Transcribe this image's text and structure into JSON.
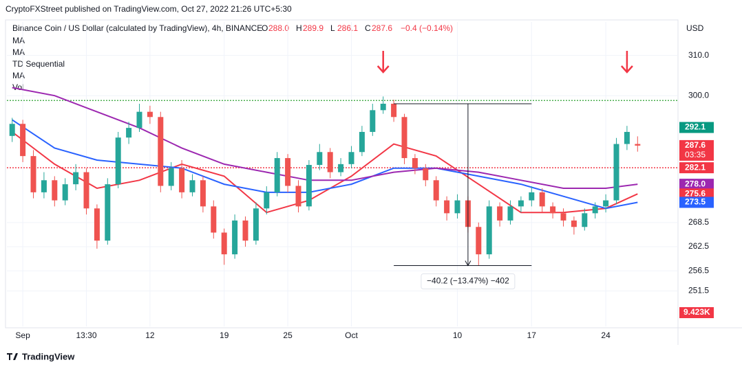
{
  "published": "CryptoFXStreet published on TradingView.com, Oct 27, 2022 21:26 UTC+5:30",
  "symbol": "Binance Coin / US Dollar (calculated by TradingView), 4h, BINANCE",
  "ohlc": [
    {
      "label": "O",
      "value": "288.0"
    },
    {
      "label": "H",
      "value": "289.9"
    },
    {
      "label": "L",
      "value": "286.1"
    },
    {
      "label": "C",
      "value": "287.6"
    }
  ],
  "change": "−0.4 (−0.14%)",
  "indicators": [
    "MA",
    "MA",
    "TD Sequential",
    "MA",
    "Vol"
  ],
  "currency": "USD",
  "footer": "TradingView",
  "chart_data": {
    "type": "candlestick",
    "categories": [
      null,
      "Sep",
      null,
      null,
      null,
      null,
      null,
      "13:30",
      null,
      null,
      null,
      null,
      null,
      "12",
      null,
      null,
      null,
      null,
      null,
      null,
      "19",
      null,
      null,
      null,
      null,
      null,
      "25",
      null,
      null,
      null,
      null,
      null,
      "Oct",
      null,
      null,
      null,
      null,
      null,
      null,
      null,
      null,
      null,
      "10",
      null,
      null,
      null,
      null,
      null,
      null,
      "17",
      null,
      null,
      null,
      null,
      null,
      null,
      "24",
      null,
      null,
      null
    ],
    "open": [
      290,
      293,
      285,
      276,
      279,
      274,
      278,
      281,
      272,
      264,
      278,
      289.6,
      292,
      296,
      294.7,
      277.6,
      282,
      276,
      279,
      272.5,
      266,
      260.6,
      269,
      264,
      272,
      276,
      284.5,
      277.6,
      272.5,
      282.8,
      286,
      281,
      283,
      286,
      291,
      296.4,
      298,
      294.7,
      284.5,
      282,
      279,
      274,
      270.8,
      274,
      267.4,
      260.6,
      272.5,
      269,
      272.5,
      274,
      276,
      272.5,
      270.8,
      269,
      267.4,
      270.8,
      272.5,
      274,
      288,
      288.0
    ],
    "high": [
      294.5,
      294,
      286.5,
      281,
      280,
      279.5,
      283,
      282,
      273,
      279.5,
      291,
      293.5,
      298,
      297.5,
      296,
      283.5,
      284,
      280.5,
      280,
      274,
      267,
      270.5,
      270,
      273.5,
      277.5,
      286,
      285.5,
      279,
      284,
      288,
      287,
      284.5,
      287.5,
      292.5,
      298,
      299.8,
      299,
      295.5,
      285.5,
      283,
      280,
      275,
      275.5,
      275,
      268.5,
      274,
      273.5,
      274,
      275,
      277.5,
      277,
      273.5,
      272,
      270,
      272,
      273.5,
      275.5,
      289.5,
      292.5,
      289.9
    ],
    "low": [
      288.5,
      283.5,
      274.5,
      274.5,
      272.5,
      272.8,
      276.5,
      270.5,
      262,
      263,
      277,
      288,
      291,
      293,
      276,
      276.5,
      274.5,
      275,
      271,
      264.5,
      258,
      259.5,
      262.5,
      263,
      270.5,
      275,
      276,
      271,
      271.5,
      281.5,
      279.5,
      280,
      282,
      285,
      290,
      295.5,
      293.5,
      283,
      280.5,
      277.5,
      272.5,
      269,
      269.5,
      266,
      257.8,
      259.5,
      267.5,
      268,
      271,
      272.5,
      271,
      269.5,
      267.5,
      265.5,
      266.5,
      269.5,
      271,
      273,
      286.5,
      286.1
    ],
    "close": [
      293,
      285,
      276,
      279,
      274,
      278,
      281,
      272,
      264,
      278,
      289.6,
      292,
      296,
      294.7,
      277.6,
      282,
      276,
      279,
      272.5,
      266,
      260.6,
      269,
      264,
      272,
      276,
      284.5,
      277.6,
      272.5,
      282.8,
      286,
      281,
      283,
      286,
      291,
      296.4,
      298,
      294.7,
      284.5,
      282,
      279,
      274,
      270.8,
      274,
      267.4,
      260.6,
      272.5,
      269,
      272.5,
      274,
      276,
      272.5,
      270.8,
      269,
      267.4,
      270.8,
      272.5,
      274,
      288,
      291,
      287.6
    ],
    "up_color": "#26a69a",
    "down_color": "#ef5350",
    "ma_lines": [
      {
        "color": "#f23645",
        "x": [
          0,
          4,
          8,
          12,
          16,
          20,
          24,
          28,
          32,
          36,
          40,
          44,
          48,
          52,
          56,
          59
        ],
        "values": [
          291,
          283,
          277,
          279,
          283,
          280,
          271,
          274,
          280,
          288,
          285,
          278,
          271,
          271,
          272,
          275.6
        ]
      },
      {
        "color": "#2962ff",
        "x": [
          0,
          4,
          8,
          12,
          16,
          20,
          24,
          28,
          32,
          36,
          40,
          44,
          48,
          52,
          56,
          59
        ],
        "values": [
          294,
          287,
          284,
          283,
          282,
          278,
          276,
          276,
          278,
          282,
          282,
          280,
          278,
          275,
          272,
          273.5
        ]
      },
      {
        "color": "#9c27b0",
        "x": [
          0,
          4,
          8,
          12,
          16,
          20,
          24,
          28,
          32,
          36,
          40,
          44,
          48,
          52,
          56,
          59
        ],
        "values": [
          302,
          300,
          296,
          292,
          287,
          283,
          281,
          279,
          279,
          281,
          282,
          281,
          279,
          277,
          277,
          278.0
        ]
      }
    ],
    "levels": [
      {
        "value": 298.8,
        "color": "#4caf50"
      },
      {
        "value": 282.1,
        "color": "#f23645"
      }
    ],
    "ylim": [
      242.7,
      318.3
    ],
    "yticks": [
      {
        "value": 310,
        "label": "310.0"
      },
      {
        "value": 300,
        "label": "300.0"
      },
      268.5,
      262.5,
      256.5,
      251.5
    ],
    "price_labels": [
      {
        "value": 292.1,
        "color": "#089981"
      },
      {
        "value": 287.6,
        "color": "#f23645",
        "sub": "03:35"
      },
      {
        "value": 282.1,
        "color": "#f23645"
      },
      {
        "value": 278,
        "label": "278.0",
        "color": "#9c27b0"
      },
      {
        "value": 275.6,
        "color": "#f23645"
      },
      {
        "value": 273.5,
        "color": "#2962ff"
      }
    ],
    "volume_label": "9.423K",
    "measure": {
      "from": 298,
      "to": 257.8,
      "label": "−40.2 (−13.47%) −402"
    },
    "grid": true
  }
}
